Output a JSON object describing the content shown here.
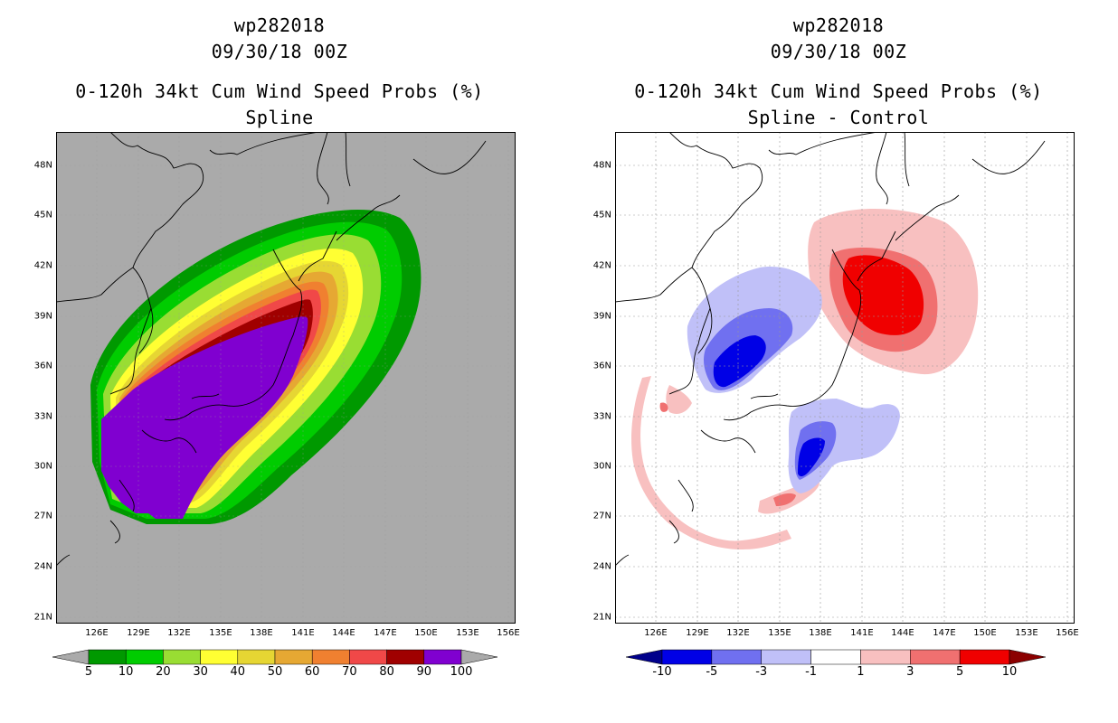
{
  "panels": [
    {
      "storm_id": "wp282018",
      "datetime": "09/30/18 00Z",
      "product": "0-120h 34kt Cum Wind Speed Probs (%)",
      "subtitle": "Spline"
    },
    {
      "storm_id": "wp282018",
      "datetime": "09/30/18 00Z",
      "product": "0-120h 34kt Cum Wind Speed Probs (%)",
      "subtitle": "Spline - Control"
    }
  ],
  "axes": {
    "lat_labels": [
      "48N",
      "45N",
      "42N",
      "39N",
      "36N",
      "33N",
      "30N",
      "27N",
      "24N",
      "21N"
    ],
    "lon_labels": [
      "126E",
      "129E",
      "132E",
      "135E",
      "138E",
      "141E",
      "144E",
      "147E",
      "150E",
      "153E",
      "156E"
    ],
    "lat_range": [
      20,
      49.5
    ],
    "lon_range": [
      123,
      156.5
    ]
  },
  "colorbars": [
    {
      "labels": [
        "5",
        "10",
        "20",
        "30",
        "40",
        "50",
        "60",
        "70",
        "80",
        "90",
        "100"
      ],
      "colors": [
        "#009900",
        "#00cc00",
        "#99dd33",
        "#ffff33",
        "#e6d633",
        "#e6a833",
        "#f08030",
        "#f04848",
        "#a00000",
        "#8000d0"
      ],
      "under_color": "#aaaaaa",
      "over_color": "#aaaaaa"
    },
    {
      "labels": [
        "-10",
        "-5",
        "-3",
        "-1",
        "1",
        "3",
        "5",
        "10"
      ],
      "colors": [
        "#0000e6",
        "#7070f0",
        "#c0c0f8",
        "#ffffff",
        "#f8c0c0",
        "#f07070",
        "#f00000"
      ],
      "under_color": "#00008b",
      "over_color": "#8b0000"
    }
  ],
  "map_colors": {
    "background_left": "#aaaaaa",
    "background_right": "#ffffff",
    "coast": "#000000",
    "grid": "#999999"
  }
}
